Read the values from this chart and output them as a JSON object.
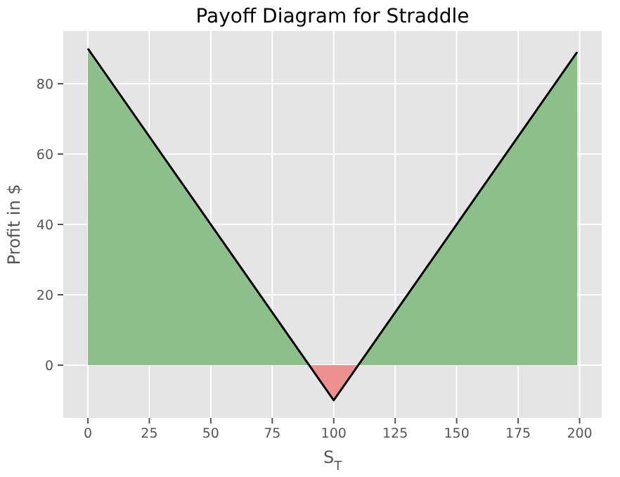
{
  "chart_data": {
    "type": "line",
    "title": "Payoff Diagram for Straddle",
    "xlabel": "S$_{T}$",
    "ylabel": "Profit in $",
    "xlim": [
      -10,
      209
    ],
    "ylim": [
      -15,
      95
    ],
    "xticks": [
      0,
      25,
      50,
      75,
      100,
      125,
      150,
      175,
      200
    ],
    "yticks": [
      0,
      20,
      40,
      60,
      80
    ],
    "grid": true,
    "series": [
      {
        "type": "area",
        "color": "#8dbf8b",
        "x": [
          0,
          90
        ],
        "values": [
          90,
          0
        ]
      },
      {
        "type": "area",
        "color": "#8dbf8b",
        "x": [
          110,
          199
        ],
        "values": [
          0,
          89
        ]
      },
      {
        "type": "area",
        "color": "#ee9090",
        "x": [
          90,
          100,
          110
        ],
        "values": [
          0,
          -10,
          0
        ]
      },
      {
        "color": "#000000",
        "x": [
          0,
          100,
          199
        ],
        "values": [
          90,
          -10,
          89
        ]
      }
    ]
  }
}
